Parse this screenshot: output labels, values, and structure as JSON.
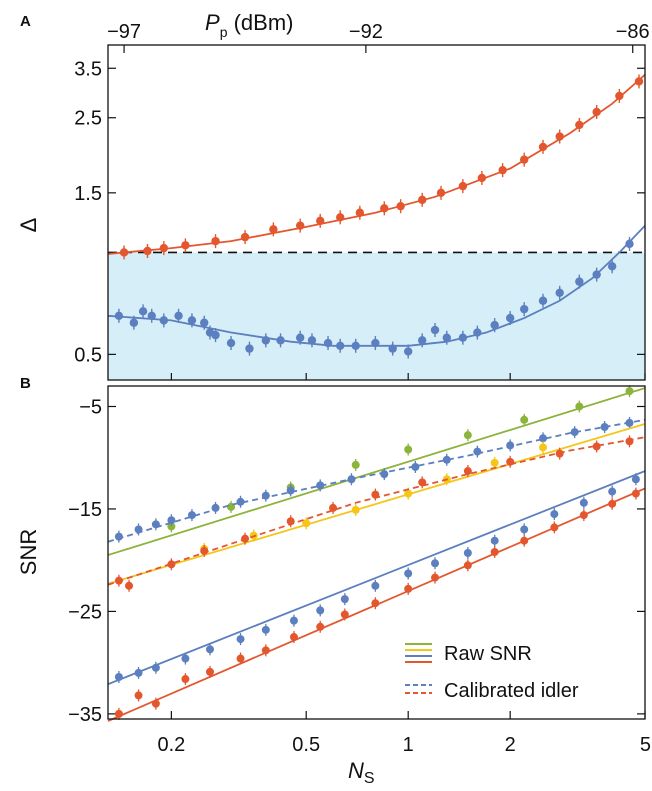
{
  "colors": {
    "red": "#e4572e",
    "blue": "#5b7fbf",
    "green": "#8cb33a",
    "yellow": "#f5c518",
    "shade": "#d6eef8"
  },
  "panel_a": {
    "letter": "A",
    "ylabel": "Δ",
    "top_axis": {
      "label_main": "P",
      "label_sub": "p",
      "label_unit": " (dBm)",
      "ticks": [
        "−97",
        "−92",
        "−86"
      ]
    }
  },
  "panel_b": {
    "letter": "B",
    "ylabel": "SNR",
    "xlabel_main": "N",
    "xlabel_sub": "S",
    "legend": [
      "Raw SNR",
      "Calibrated idler"
    ]
  },
  "chart_data": [
    {
      "type": "scatter",
      "panel": "A",
      "xscale": "log",
      "yscale": "log",
      "xlim": [
        0.13,
        5
      ],
      "ylim": [
        0.42,
        4.1
      ],
      "yticks": [
        0.5,
        1.5,
        2.5,
        3.5
      ],
      "ytick_labels": [
        "0.5",
        "1.5",
        "2.5",
        "3.5"
      ],
      "top_ticks": [
        {
          "value": -97,
          "at_x": 0.145
        },
        {
          "value": -92,
          "at_x": 0.75
        },
        {
          "value": -86,
          "at_x": 4.6
        }
      ],
      "reference_line": 1.0,
      "shaded_region": [
        0.42,
        1.0
      ],
      "series": [
        {
          "color": "red",
          "x": [
            0.145,
            0.17,
            0.19,
            0.22,
            0.27,
            0.33,
            0.4,
            0.48,
            0.55,
            0.63,
            0.72,
            0.85,
            0.95,
            1.1,
            1.25,
            1.45,
            1.65,
            1.9,
            2.2,
            2.5,
            2.8,
            3.2,
            3.6,
            4.2,
            4.8
          ],
          "y": [
            1.0,
            1.01,
            1.03,
            1.05,
            1.08,
            1.11,
            1.17,
            1.2,
            1.24,
            1.27,
            1.31,
            1.35,
            1.37,
            1.43,
            1.5,
            1.57,
            1.66,
            1.75,
            1.88,
            2.05,
            2.2,
            2.38,
            2.6,
            2.9,
            3.2
          ],
          "curve_x": [
            0.13,
            0.2,
            0.3,
            0.5,
            0.8,
            1.2,
            2.0,
            3.0,
            4.0,
            5.0
          ],
          "curve_y": [
            0.99,
            1.03,
            1.08,
            1.19,
            1.31,
            1.46,
            1.77,
            2.25,
            2.75,
            3.35
          ]
        },
        {
          "color": "blue",
          "x": [
            0.14,
            0.155,
            0.165,
            0.175,
            0.19,
            0.21,
            0.23,
            0.25,
            0.26,
            0.27,
            0.3,
            0.34,
            0.38,
            0.42,
            0.48,
            0.52,
            0.58,
            0.63,
            0.7,
            0.8,
            0.9,
            1.0,
            1.1,
            1.2,
            1.3,
            1.45,
            1.6,
            1.8,
            2.0,
            2.2,
            2.5,
            2.8,
            3.2,
            3.6,
            4.0,
            4.5
          ],
          "y": [
            0.65,
            0.62,
            0.67,
            0.65,
            0.63,
            0.65,
            0.63,
            0.62,
            0.58,
            0.57,
            0.54,
            0.52,
            0.55,
            0.55,
            0.56,
            0.55,
            0.54,
            0.53,
            0.53,
            0.54,
            0.52,
            0.51,
            0.55,
            0.59,
            0.56,
            0.56,
            0.58,
            0.61,
            0.64,
            0.68,
            0.72,
            0.76,
            0.82,
            0.86,
            0.91,
            1.06
          ],
          "curve_x": [
            0.13,
            0.2,
            0.3,
            0.45,
            0.6,
            0.8,
            1.0,
            1.3,
            1.7,
            2.2,
            2.8,
            3.5,
            4.2,
            5.0
          ],
          "curve_y": [
            0.65,
            0.63,
            0.58,
            0.545,
            0.53,
            0.53,
            0.53,
            0.545,
            0.58,
            0.64,
            0.72,
            0.84,
            1.0,
            1.2
          ]
        }
      ]
    },
    {
      "type": "scatter",
      "panel": "B",
      "xscale": "log",
      "xlim": [
        0.13,
        5
      ],
      "ylim": [
        -35.5,
        -3
      ],
      "xticks": [
        0.2,
        0.5,
        1,
        2,
        5
      ],
      "xtick_labels": [
        "0.2",
        "0.5",
        "1",
        "2",
        "5"
      ],
      "yticks": [
        -35,
        -25,
        -15,
        -5
      ],
      "ytick_labels": [
        "−35",
        "−25",
        "−15",
        "−5"
      ],
      "series": [
        {
          "name": "Raw SNR",
          "color": "green",
          "style": "solid",
          "x": [
            0.2,
            0.3,
            0.45,
            0.7,
            1.0,
            1.5,
            2.2,
            3.2,
            4.5
          ],
          "y": [
            -16.7,
            -14.8,
            -12.9,
            -10.7,
            -9.2,
            -7.8,
            -6.3,
            -5.0,
            -3.5
          ],
          "curve_x": [
            0.13,
            5.0
          ],
          "curve_y": [
            -19.5,
            -3.2
          ]
        },
        {
          "name": "Calibrated idler",
          "color": "blue",
          "style": "dashed",
          "x": [
            0.14,
            0.16,
            0.18,
            0.2,
            0.23,
            0.27,
            0.32,
            0.38,
            0.45,
            0.55,
            0.68,
            0.85,
            1.05,
            1.3,
            1.6,
            2.0,
            2.5,
            3.1,
            3.8,
            4.5
          ],
          "y": [
            -17.7,
            -17.0,
            -16.5,
            -16.1,
            -15.6,
            -14.9,
            -14.3,
            -13.7,
            -13.2,
            -12.7,
            -12.1,
            -11.6,
            -10.9,
            -10.2,
            -9.4,
            -8.8,
            -8.1,
            -7.5,
            -7.0,
            -6.6
          ],
          "curve_x": [
            0.13,
            0.3,
            0.7,
            1.5,
            3.0,
            5.0
          ],
          "curve_y": [
            -18.2,
            -14.6,
            -12.0,
            -9.8,
            -7.6,
            -6.3
          ]
        },
        {
          "name": "Raw SNR",
          "color": "yellow",
          "style": "solid",
          "x": [
            0.25,
            0.35,
            0.5,
            0.7,
            1.0,
            1.3,
            1.8,
            2.5
          ],
          "y": [
            -18.9,
            -17.6,
            -16.4,
            -15.1,
            -13.5,
            -12.1,
            -10.5,
            -9.0
          ],
          "curve_x": [
            0.13,
            5.0
          ],
          "curve_y": [
            -22.3,
            -6.7
          ]
        },
        {
          "name": "Calibrated idler",
          "color": "red",
          "style": "dashed",
          "x": [
            0.14,
            0.15,
            0.2,
            0.25,
            0.33,
            0.45,
            0.6,
            0.8,
            1.1,
            1.5,
            2.0,
            2.8,
            3.6,
            4.5
          ],
          "y": [
            -22.0,
            -22.5,
            -20.4,
            -19.1,
            -17.9,
            -16.2,
            -14.9,
            -13.6,
            -12.4,
            -11.3,
            -10.4,
            -9.6,
            -8.9,
            -8.4
          ],
          "curve_x": [
            0.13,
            0.3,
            0.7,
            1.5,
            3.0,
            5.0
          ],
          "curve_y": [
            -22.4,
            -18.4,
            -14.4,
            -11.6,
            -9.3,
            -8.0
          ]
        },
        {
          "name": "Raw SNR",
          "color": "blue",
          "style": "solid",
          "x": [
            0.14,
            0.16,
            0.18,
            0.22,
            0.26,
            0.32,
            0.38,
            0.46,
            0.55,
            0.65,
            0.8,
            1.0,
            1.2,
            1.5,
            1.8,
            2.2,
            2.7,
            3.3,
            4.0,
            4.7
          ],
          "y": [
            -31.4,
            -31.0,
            -30.5,
            -29.6,
            -28.7,
            -27.7,
            -26.8,
            -25.9,
            -24.9,
            -23.8,
            -22.5,
            -21.3,
            -20.3,
            -19.3,
            -18.1,
            -17.0,
            -15.5,
            -14.4,
            -13.3,
            -12.1
          ],
          "curve_x": [
            0.13,
            5.0
          ],
          "curve_y": [
            -32.1,
            -11.3
          ]
        },
        {
          "name": "Raw SNR",
          "color": "red",
          "style": "solid",
          "x": [
            0.14,
            0.16,
            0.18,
            0.22,
            0.26,
            0.32,
            0.38,
            0.46,
            0.55,
            0.65,
            0.8,
            1.0,
            1.2,
            1.5,
            1.8,
            2.2,
            2.7,
            3.3,
            4.0,
            4.7
          ],
          "y": [
            -35.0,
            -33.2,
            -34.0,
            -31.6,
            -30.9,
            -29.6,
            -28.8,
            -27.5,
            -26.5,
            -25.3,
            -24.2,
            -22.8,
            -21.7,
            -20.5,
            -19.2,
            -18.1,
            -16.8,
            -15.6,
            -14.5,
            -13.5
          ],
          "curve_x": [
            0.13,
            5.0
          ],
          "curve_y": [
            -35.7,
            -13.0
          ]
        }
      ]
    }
  ]
}
